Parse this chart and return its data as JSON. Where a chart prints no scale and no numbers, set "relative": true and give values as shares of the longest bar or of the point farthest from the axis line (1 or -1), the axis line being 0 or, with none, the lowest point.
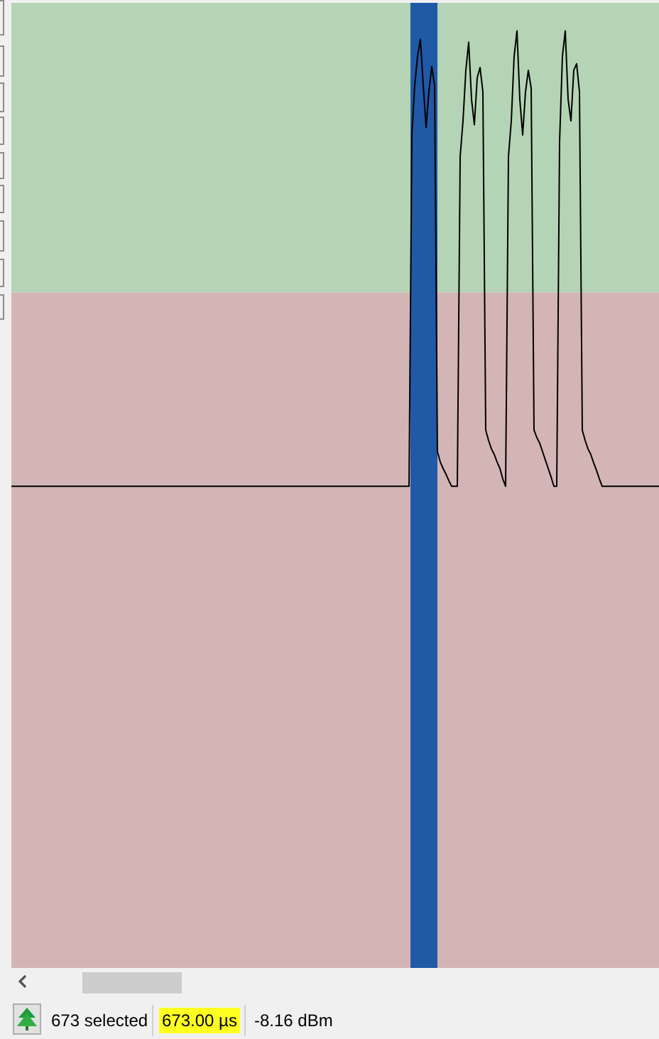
{
  "chart_data": {
    "type": "line",
    "relative": true,
    "categories": [
      null,
      null,
      null,
      null,
      null,
      null,
      null,
      null,
      null,
      null,
      null,
      null,
      null,
      null,
      null,
      null,
      null,
      null,
      null,
      null,
      null,
      null,
      null,
      null,
      null,
      null,
      null,
      null,
      null,
      null,
      null,
      null,
      null,
      null,
      null,
      null,
      null,
      null,
      null,
      null,
      null,
      null,
      null,
      null,
      null,
      null,
      null,
      null,
      null,
      null,
      null,
      null,
      null,
      null,
      null,
      null,
      null,
      null,
      null,
      null,
      null,
      null,
      null,
      null,
      null,
      null,
      null,
      null,
      null,
      null,
      null,
      null,
      null,
      null,
      null,
      null,
      null,
      null,
      null,
      null,
      null,
      null,
      null,
      null,
      null,
      null,
      null,
      null,
      null,
      null,
      null,
      null,
      null,
      null,
      null,
      null,
      null,
      null,
      null,
      null,
      null,
      null,
      null,
      null,
      null,
      null,
      null,
      null,
      null,
      null,
      null,
      null,
      null,
      null,
      null,
      null,
      null,
      null,
      null,
      null,
      null,
      null,
      null,
      null,
      null,
      null,
      null,
      null,
      null,
      null,
      null,
      null,
      null,
      null,
      null,
      null,
      null,
      null,
      null,
      null,
      null,
      null,
      null,
      null,
      null,
      null,
      null,
      null,
      null,
      null,
      null,
      null,
      null,
      null,
      null,
      null,
      null,
      null,
      null,
      null,
      null,
      null,
      null,
      null,
      null,
      null,
      null,
      null,
      null,
      null,
      null,
      null,
      null,
      null,
      null,
      null,
      null,
      null,
      null,
      null,
      null,
      null,
      null,
      null,
      null,
      null,
      null,
      null,
      null,
      null,
      null,
      null,
      null,
      null,
      null,
      null,
      null,
      null,
      null,
      null,
      null,
      null,
      null,
      null,
      null,
      null,
      null,
      null,
      null,
      null,
      null,
      null,
      null,
      null,
      null,
      null,
      null,
      null,
      null,
      null,
      null,
      null,
      null,
      null,
      null,
      null,
      null,
      null,
      null
    ],
    "values": [
      0.514,
      0.514,
      0.514,
      0.514,
      0.514,
      0.514,
      0.514,
      0.514,
      0.514,
      0.514,
      0.514,
      0.514,
      0.514,
      0.514,
      0.514,
      0.514,
      0.514,
      0.514,
      0.514,
      0.514,
      0.514,
      0.514,
      0.514,
      0.514,
      0.514,
      0.514,
      0.514,
      0.514,
      0.514,
      0.514,
      0.514,
      0.514,
      0.514,
      0.514,
      0.514,
      0.514,
      0.514,
      0.514,
      0.514,
      0.514,
      0.514,
      0.514,
      0.514,
      0.514,
      0.514,
      0.514,
      0.514,
      0.514,
      0.514,
      0.514,
      0.514,
      0.514,
      0.514,
      0.514,
      0.514,
      0.514,
      0.514,
      0.514,
      0.514,
      0.514,
      0.514,
      0.514,
      0.514,
      0.514,
      0.514,
      0.514,
      0.514,
      0.514,
      0.514,
      0.514,
      0.514,
      0.514,
      0.514,
      0.514,
      0.514,
      0.514,
      0.514,
      0.514,
      0.514,
      0.514,
      0.514,
      0.514,
      0.514,
      0.514,
      0.514,
      0.514,
      0.514,
      0.514,
      0.514,
      0.514,
      0.514,
      0.514,
      0.514,
      0.514,
      0.514,
      0.514,
      0.514,
      0.514,
      0.514,
      0.514,
      0.514,
      0.514,
      0.514,
      0.514,
      0.514,
      0.514,
      0.514,
      0.514,
      0.514,
      0.514,
      0.514,
      0.514,
      0.514,
      0.514,
      0.514,
      0.514,
      0.514,
      0.514,
      0.514,
      0.514,
      0.514,
      0.514,
      0.514,
      0.514,
      0.514,
      0.514,
      0.514,
      0.514,
      0.514,
      0.514,
      0.514,
      0.514,
      0.514,
      0.514,
      0.514,
      0.514,
      0.514,
      0.514,
      0.514,
      0.514,
      0.514,
      0.889,
      0.942,
      0.973,
      0.991,
      0.942,
      0.897,
      0.935,
      0.962,
      0.942,
      0.551,
      0.54,
      0.533,
      0.527,
      0.52,
      0.514,
      0.514,
      0.514,
      0.866,
      0.904,
      0.958,
      0.988,
      0.927,
      0.9,
      0.95,
      0.961,
      0.935,
      0.574,
      0.563,
      0.554,
      0.548,
      0.54,
      0.533,
      0.522,
      0.514,
      0.866,
      0.904,
      0.973,
      1,
      0.927,
      0.889,
      0.935,
      0.958,
      0.939,
      0.574,
      0.566,
      0.56,
      0.551,
      0.542,
      0.533,
      0.524,
      0.514,
      0.514,
      0.882,
      0.973,
      1,
      0.927,
      0.904,
      0.958,
      0.965,
      0.935,
      0.574,
      0.563,
      0.554,
      0.548,
      0.539,
      0.531,
      0.522,
      0.514,
      0.514,
      0.514,
      0.514,
      0.514,
      0.514,
      0.514,
      0.514,
      0.514,
      0.514,
      0.514,
      0.514,
      0.514,
      0.514,
      0.514,
      0.514,
      0.514,
      0.514,
      0.514,
      0.514,
      0.514
    ],
    "color": "#000000",
    "marker": "none",
    "bands": [
      {
        "axis": "y",
        "from": 0.721,
        "to": 1.03,
        "color": "#b5d4b5"
      },
      {
        "axis": "y",
        "from": 0,
        "to": 0.721,
        "color": "#d4b5b5"
      }
    ],
    "annotations": [
      "673 selected",
      "673.00 µs",
      "-8.16 dBm"
    ]
  }
}
